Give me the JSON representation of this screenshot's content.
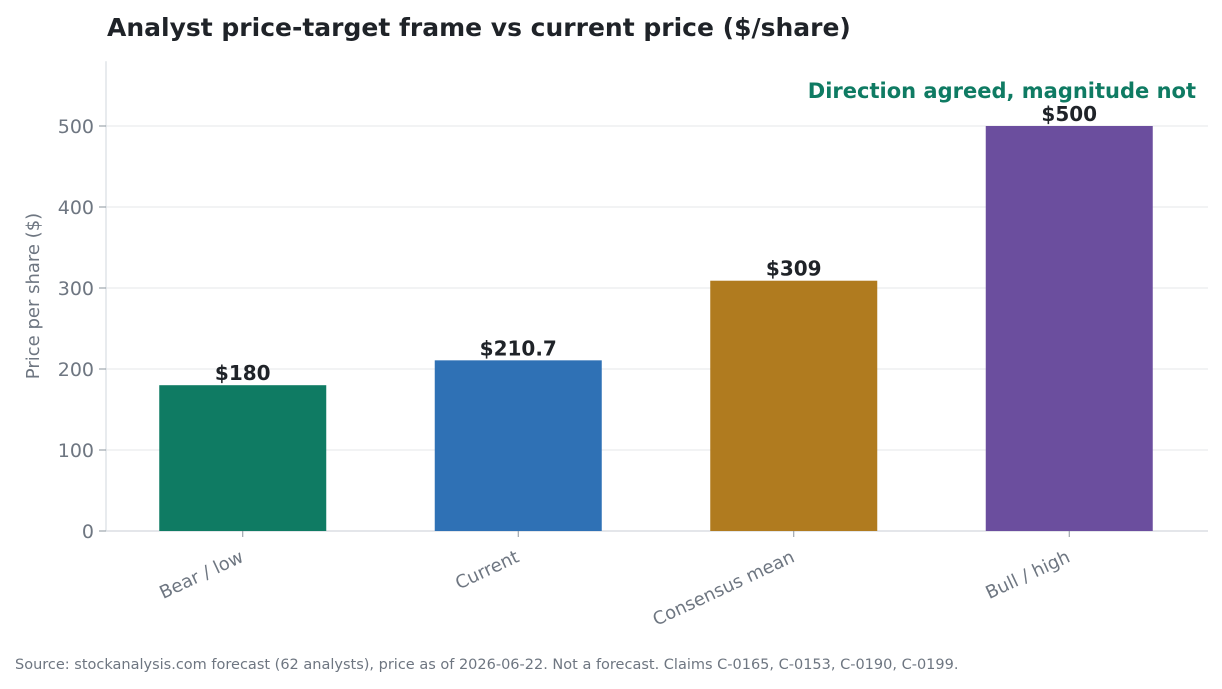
{
  "chart_data": {
    "type": "bar",
    "title": "Analyst price-target frame vs current price ($/share)",
    "ylabel": "Price per share ($)",
    "xlabel": "",
    "ylim": [
      0,
      580
    ],
    "yticks": [
      0,
      100,
      200,
      300,
      400,
      500
    ],
    "grid": true,
    "categories": [
      "Bear / low",
      "Current",
      "Consensus mean",
      "Bull / high"
    ],
    "values": [
      180,
      210.7,
      309,
      500
    ],
    "value_labels": [
      "$180",
      "$210.7",
      "$309",
      "$500"
    ],
    "colors": [
      "#0f7b63",
      "#2f71b5",
      "#b07b1f",
      "#6b4e9e"
    ],
    "annotation": {
      "text": "Direction agreed, magnitude not",
      "color": "#0f7b63"
    },
    "source": "Source: stockanalysis.com forecast (62 analysts), price as of 2026-06-22. Not a forecast. Claims C-0165, C-0153, C-0190, C-0199."
  }
}
